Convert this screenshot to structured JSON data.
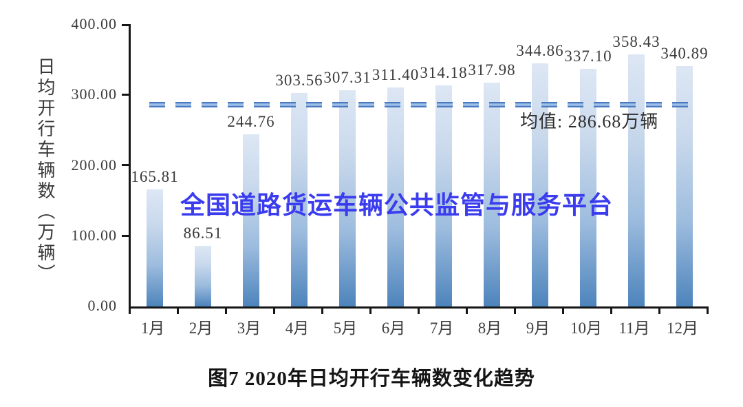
{
  "figure": {
    "watermark": "全国道路货运车辆公共监管与服务平台",
    "caption": "图7 2020年日均开行车辆数变化趋势"
  },
  "chart_data": {
    "type": "bar",
    "title": "图7 2020年日均开行车辆数变化趋势",
    "ylabel": "日均开行车辆数（万辆）",
    "xlabel": "",
    "categories": [
      "1月",
      "2月",
      "3月",
      "4月",
      "5月",
      "6月",
      "7月",
      "8月",
      "9月",
      "10月",
      "11月",
      "12月"
    ],
    "values": [
      165.81,
      86.51,
      244.76,
      303.56,
      307.31,
      311.4,
      314.18,
      317.98,
      344.86,
      337.1,
      358.43,
      340.89
    ],
    "value_labels": [
      "165.81",
      "86.51",
      "244.76",
      "303.56",
      "307.31",
      "311.40",
      "314.18",
      "317.98",
      "344.86",
      "337.10",
      "358.43",
      "340.89"
    ],
    "ylim": [
      0,
      400
    ],
    "y_tick_labels": [
      "400.00",
      "300.00",
      "200.00",
      "100.00",
      "0.00"
    ],
    "mean": 286.68,
    "mean_label": "均值: 286.68万辆",
    "grid": false,
    "legend": false,
    "colors": {
      "bar_gradient_top": "#dde7f4",
      "bar_gradient_bottom": "#4d84bc",
      "mean_dash_outline": "#4b79c0",
      "mean_dash_core": "#9cc0e8",
      "axis": "#161616",
      "text": "#3a3a3a",
      "watermark": "#3a3cee"
    }
  }
}
